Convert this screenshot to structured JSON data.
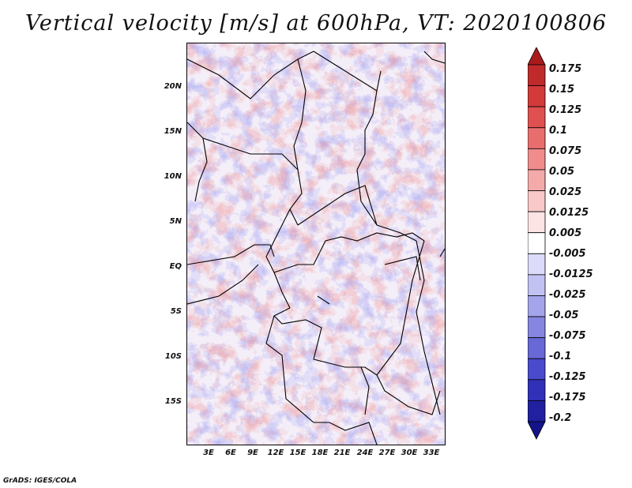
{
  "title": "Vertical velocity [m/s] at 600hPa, VT: 2020100806",
  "map": {
    "lat_labels": [
      "20N",
      "15N",
      "10N",
      "5N",
      "EQ",
      "5S",
      "10S",
      "15S"
    ],
    "lon_labels": [
      "3E",
      "6E",
      "9E",
      "12E",
      "15E",
      "18E",
      "21E",
      "24E",
      "27E",
      "30E",
      "33E"
    ]
  },
  "colorbar": {
    "labels": [
      "0.175",
      "0.15",
      "0.125",
      "0.1",
      "0.075",
      "0.05",
      "0.025",
      "0.0125",
      "0.005",
      "-0.005",
      "-0.0125",
      "-0.025",
      "-0.05",
      "-0.075",
      "-0.1",
      "-0.125",
      "-0.175",
      "-0.2"
    ],
    "colors": [
      "#aa1a1a",
      "#c02a2a",
      "#d43a3a",
      "#e05050",
      "#e86e6e",
      "#f08c8c",
      "#f5aaaa",
      "#f9c8c8",
      "#fce4e4",
      "#ffffff",
      "#dcdcfa",
      "#c2c2f2",
      "#a4a4ea",
      "#8686e0",
      "#6868d6",
      "#4a4acc",
      "#3030b8",
      "#2020a0",
      "#14148a"
    ]
  },
  "credit": "GrADS: IGES/COLA"
}
